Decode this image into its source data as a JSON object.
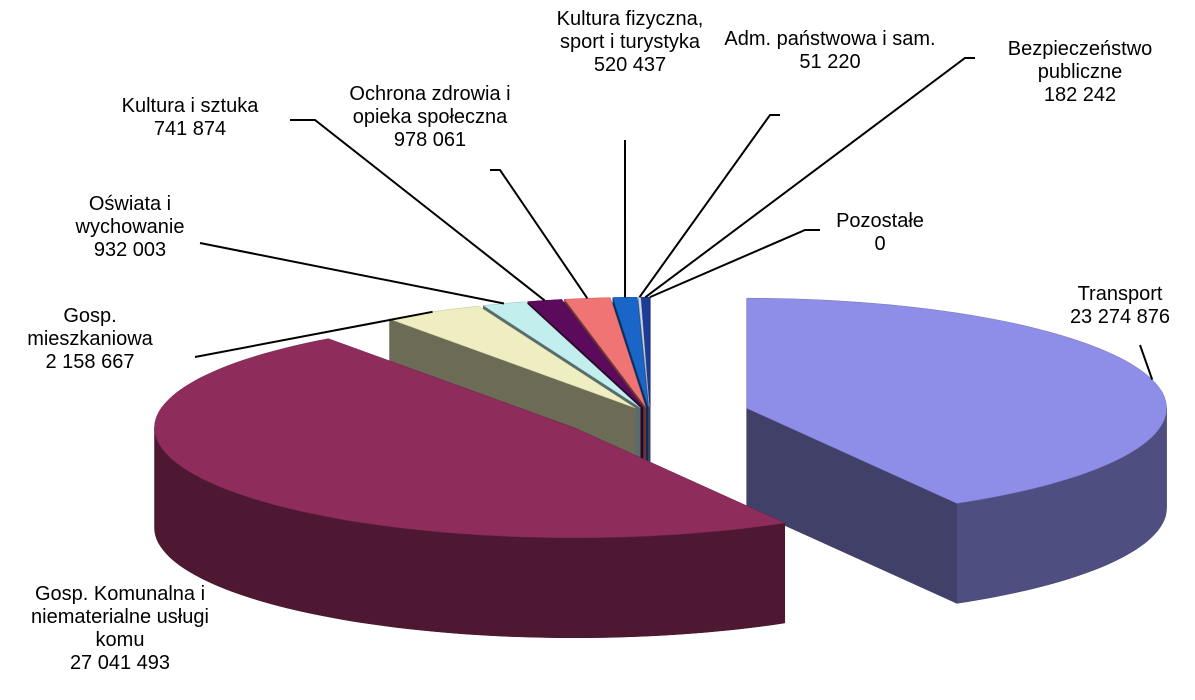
{
  "chart_data": {
    "type": "pie3d",
    "categories": [
      "Transport",
      "Gosp. Komunalna i niematerialne usługi komu",
      "Gosp. mieszkaniowa",
      "Oświata i wychowanie",
      "Kultura i sztuka",
      "Ochrona zdrowia i opieka społeczna",
      "Kultura fizyczna, sport i turystyka",
      "Adm. państwowa i sam.",
      "Bezpieczeństwo publiczne",
      "Pozostałe"
    ],
    "values": [
      23274876,
      27041493,
      2158667,
      932003,
      741874,
      978061,
      520437,
      51220,
      182242,
      0
    ],
    "value_labels": [
      "23 274 876",
      "27 041 493",
      "2 158 667",
      "932 003",
      "741 874",
      "978 061",
      "520 437",
      "51 220",
      "182 242",
      "0"
    ],
    "colors": [
      "#8e8ee8",
      "#8e2c5c",
      "#efeec0",
      "#c2eeee",
      "#5c0a5c",
      "#f07474",
      "#1a66c8",
      "#c8d8f0",
      "#1c3c96",
      "#000080"
    ]
  }
}
